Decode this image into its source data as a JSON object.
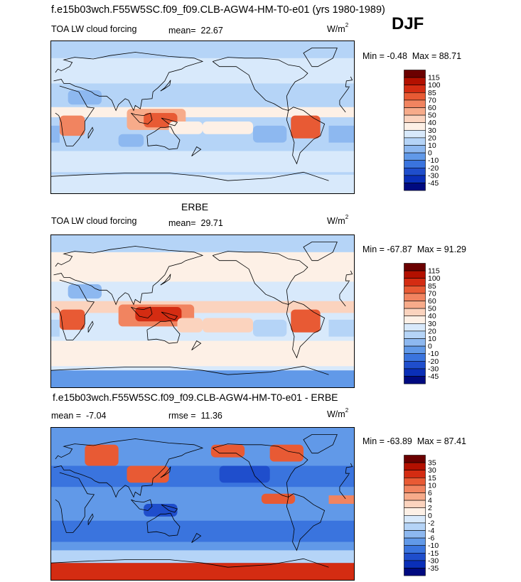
{
  "page": {
    "title": "f.e15b03wch.F55W5SC.f09_f09.CLB-AGW4-HM-T0-e01 (yrs 1980-1989)",
    "season": "DJF"
  },
  "panels": [
    {
      "id": "model",
      "heading": "",
      "variable": "TOA LW cloud forcing",
      "stat1_label": "mean=",
      "stat1_value": "22.67",
      "stat2_label": "",
      "stat2_value": "",
      "units_base": "W/m",
      "units_exp": "2",
      "min_label": "Min =",
      "min_value": "-0.48",
      "max_label": "Max =",
      "max_value": "88.71",
      "legend_levels": [
        "115",
        "100",
        "85",
        "70",
        "60",
        "50",
        "40",
        "30",
        "20",
        "10",
        "0",
        "-10",
        "-20",
        "-30",
        "-45"
      ]
    },
    {
      "id": "obs",
      "heading": "ERBE",
      "variable": "TOA LW cloud forcing",
      "stat1_label": "mean=",
      "stat1_value": "29.71",
      "stat2_label": "",
      "stat2_value": "",
      "units_base": "W/m",
      "units_exp": "2",
      "min_label": "Min =",
      "min_value": "-67.87",
      "max_label": "Max =",
      "max_value": "91.29",
      "legend_levels": [
        "115",
        "100",
        "85",
        "70",
        "60",
        "50",
        "40",
        "30",
        "20",
        "10",
        "0",
        "-10",
        "-20",
        "-30",
        "-45"
      ]
    },
    {
      "id": "diff",
      "heading": "f.e15b03wch.F55W5SC.f09_f09.CLB-AGW4-HM-T0-e01 - ERBE",
      "variable": "",
      "stat1_label": "mean =",
      "stat1_value": "-7.04",
      "stat2_label": "rmse =",
      "stat2_value": "11.36",
      "units_base": "W/m",
      "units_exp": "2",
      "min_label": "Min =",
      "min_value": "-63.89",
      "max_label": "Max =",
      "max_value": "87.41",
      "legend_levels": [
        "35",
        "30",
        "15",
        "10",
        "6",
        "4",
        "2",
        "0",
        "-2",
        "-4",
        "-6",
        "-10",
        "-15",
        "-30",
        "-35"
      ]
    }
  ],
  "colors": {
    "scale": [
      "#6b0000",
      "#b31000",
      "#d42c12",
      "#e85a34",
      "#f18460",
      "#f7ab8a",
      "#fbd3be",
      "#fdf0e6",
      "#d8e9fb",
      "#b5d4f7",
      "#8db8f0",
      "#6199e8",
      "#3a74de",
      "#1f4ecc",
      "#0a2fb8",
      "#000a80"
    ],
    "ocean_base": "#cfe3fa",
    "coast": "#000000"
  },
  "chart_data": [
    {
      "type": "heatmap",
      "name": "model",
      "title": "TOA LW cloud forcing",
      "levels": [
        115,
        100,
        85,
        70,
        60,
        50,
        40,
        30,
        20,
        10,
        0,
        -10,
        -20,
        -30,
        -45
      ],
      "units": "W/m2",
      "mean": 22.67,
      "min": -0.48,
      "max": 88.71,
      "regions": [
        {
          "lon": [
            -180,
            180
          ],
          "lat": [
            -90,
            90
          ],
          "value": 15
        },
        {
          "lon": [
            -180,
            180
          ],
          "lat": [
            40,
            70
          ],
          "value": 25
        },
        {
          "lon": [
            -180,
            180
          ],
          "lat": [
            -65,
            -40
          ],
          "value": 25
        },
        {
          "lon": [
            -180,
            180
          ],
          "lat": [
            0,
            12
          ],
          "value": 35
        },
        {
          "lon": [
            90,
            160
          ],
          "lat": [
            -15,
            10
          ],
          "value": 55
        },
        {
          "lon": [
            110,
            150
          ],
          "lat": [
            -12,
            5
          ],
          "value": 75
        },
        {
          "lon": [
            140,
            240
          ],
          "lat": [
            -20,
            -5
          ],
          "value": 35
        },
        {
          "lon": [
            10,
            40
          ],
          "lat": [
            -22,
            2
          ],
          "value": 65
        },
        {
          "lon": [
            -75,
            -40
          ],
          "lat": [
            -25,
            2
          ],
          "value": 70
        },
        {
          "lon": [
            -120,
            -80
          ],
          "lat": [
            -30,
            -10
          ],
          "value": 5
        },
        {
          "lon": [
            -30,
            10
          ],
          "lat": [
            -30,
            -10
          ],
          "value": 5
        },
        {
          "lon": [
            80,
            110
          ],
          "lat": [
            -35,
            -20
          ],
          "value": 5
        },
        {
          "lon": [
            20,
            60
          ],
          "lat": [
            15,
            32
          ],
          "value": 5
        },
        {
          "lon": [
            -180,
            180
          ],
          "lat": [
            -90,
            -68
          ],
          "value": 20
        }
      ]
    },
    {
      "type": "heatmap",
      "name": "obs",
      "title": "ERBE",
      "levels": [
        115,
        100,
        85,
        70,
        60,
        50,
        40,
        30,
        20,
        10,
        0,
        -10,
        -20,
        -30,
        -45
      ],
      "units": "W/m2",
      "mean": 29.71,
      "min": -67.87,
      "max": 91.29,
      "regions": [
        {
          "lon": [
            -180,
            180
          ],
          "lat": [
            -90,
            90
          ],
          "value": 25
        },
        {
          "lon": [
            -180,
            180
          ],
          "lat": [
            35,
            70
          ],
          "value": 35
        },
        {
          "lon": [
            -180,
            180
          ],
          "lat": [
            -65,
            -35
          ],
          "value": 35
        },
        {
          "lon": [
            -180,
            180
          ],
          "lat": [
            -2,
            12
          ],
          "value": 45
        },
        {
          "lon": [
            80,
            170
          ],
          "lat": [
            -18,
            8
          ],
          "value": 65
        },
        {
          "lon": [
            100,
            155
          ],
          "lat": [
            -12,
            5
          ],
          "value": 85
        },
        {
          "lon": [
            150,
            240
          ],
          "lat": [
            -25,
            -8
          ],
          "value": 45
        },
        {
          "lon": [
            10,
            40
          ],
          "lat": [
            -22,
            2
          ],
          "value": 70
        },
        {
          "lon": [
            -75,
            -40
          ],
          "lat": [
            -25,
            2
          ],
          "value": 75
        },
        {
          "lon": [
            -120,
            -80
          ],
          "lat": [
            -30,
            -10
          ],
          "value": 15
        },
        {
          "lon": [
            -30,
            10
          ],
          "lat": [
            -30,
            -10
          ],
          "value": 15
        },
        {
          "lon": [
            20,
            60
          ],
          "lat": [
            15,
            32
          ],
          "value": 5
        },
        {
          "lon": [
            -180,
            180
          ],
          "lat": [
            70,
            90
          ],
          "value": 15
        },
        {
          "lon": [
            -180,
            180
          ],
          "lat": [
            -90,
            -70
          ],
          "value": -5
        }
      ]
    },
    {
      "type": "heatmap",
      "name": "diff",
      "title": "f.e15b03wch.F55W5SC.f09_f09.CLB-AGW4-HM-T0-e01 - ERBE",
      "levels": [
        35,
        30,
        15,
        10,
        6,
        4,
        2,
        0,
        -2,
        -4,
        -6,
        -10,
        -15,
        -30,
        -35
      ],
      "units": "W/m2",
      "mean": -7.04,
      "rmse": 11.36,
      "min": -63.89,
      "max": 87.41,
      "regions": [
        {
          "lon": [
            -180,
            180
          ],
          "lat": [
            -90,
            90
          ],
          "value": -8
        },
        {
          "lon": [
            -180,
            180
          ],
          "lat": [
            20,
            45
          ],
          "value": -12
        },
        {
          "lon": [
            -180,
            180
          ],
          "lat": [
            -45,
            -20
          ],
          "value": -12
        },
        {
          "lon": [
            -160,
            -100
          ],
          "lat": [
            25,
            45
          ],
          "value": -20
        },
        {
          "lon": [
            40,
            80
          ],
          "lat": [
            45,
            70
          ],
          "value": 12
        },
        {
          "lon": [
            -100,
            -60
          ],
          "lat": [
            50,
            70
          ],
          "value": 10
        },
        {
          "lon": [
            -170,
            -130
          ],
          "lat": [
            55,
            70
          ],
          "value": 12
        },
        {
          "lon": [
            90,
            140
          ],
          "lat": [
            25,
            45
          ],
          "value": 12
        },
        {
          "lon": [
            -110,
            -70
          ],
          "lat": [
            0,
            12
          ],
          "value": 12
        },
        {
          "lon": [
            -30,
            0
          ],
          "lat": [
            0,
            10
          ],
          "value": 6
        },
        {
          "lon": [
            110,
            150
          ],
          "lat": [
            -15,
            0
          ],
          "value": -20
        },
        {
          "lon": [
            -180,
            180
          ],
          "lat": [
            -70,
            -55
          ],
          "value": -3
        },
        {
          "lon": [
            -180,
            180
          ],
          "lat": [
            -90,
            -70
          ],
          "value": 25
        }
      ]
    }
  ]
}
